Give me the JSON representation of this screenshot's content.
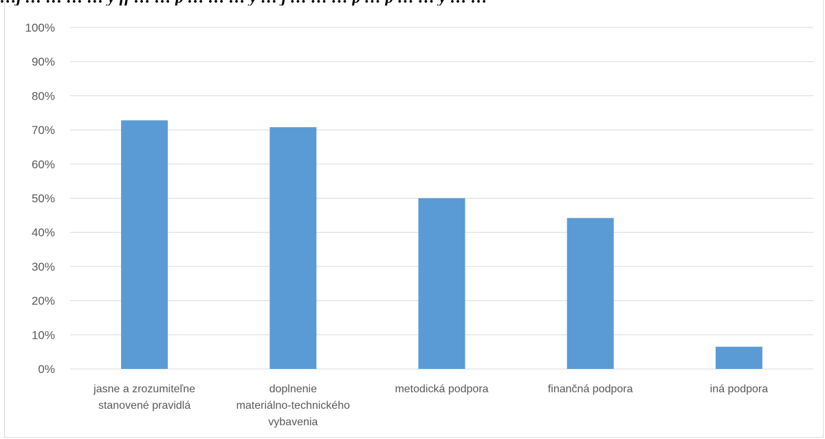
{
  "caption_fragment": "…j  … … … … y ff … … p … … … y … j … … … p … p … … y … …",
  "chart_data": {
    "type": "bar",
    "categories": [
      [
        "jasne a zrozumiteľne",
        "stanovené pravidlá"
      ],
      [
        "doplnenie",
        "materiálno-technického",
        "vybavenia"
      ],
      [
        "metodická podpora"
      ],
      [
        "finančná podpora"
      ],
      [
        "iná podpora"
      ]
    ],
    "values": [
      72.8,
      70.8,
      50.0,
      44.2,
      6.5
    ],
    "ylim": [
      0,
      100
    ],
    "yticks": [
      "0%",
      "10%",
      "20%",
      "30%",
      "40%",
      "50%",
      "60%",
      "70%",
      "80%",
      "90%",
      "100%"
    ],
    "grid": true,
    "bar_color": "#5b9bd5",
    "grid_color": "#d9d9d9"
  }
}
